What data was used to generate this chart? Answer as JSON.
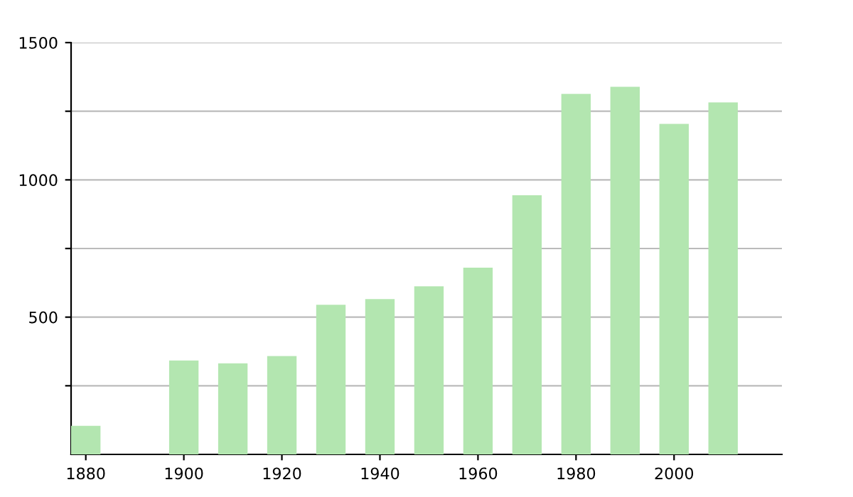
{
  "chart_data": {
    "type": "bar",
    "x": [
      1880,
      1900,
      1910,
      1920,
      1930,
      1940,
      1950,
      1960,
      1970,
      1980,
      1990,
      2000,
      2010
    ],
    "values": [
      104,
      342,
      332,
      358,
      545,
      566,
      612,
      680,
      944,
      1313,
      1339,
      1204,
      1282
    ],
    "color": "#b3e6b0",
    "xlim": [
      1877,
      2022
    ],
    "xticks": [
      1880,
      1900,
      1920,
      1940,
      1960,
      1980,
      2000
    ],
    "ylim": [
      0,
      1500
    ],
    "yticks": [
      {
        "value": 250,
        "label": null
      },
      500,
      {
        "value": 750,
        "label": null
      },
      1000,
      {
        "value": 1250,
        "label": null
      },
      1500
    ],
    "grid": "y",
    "legend": false
  }
}
